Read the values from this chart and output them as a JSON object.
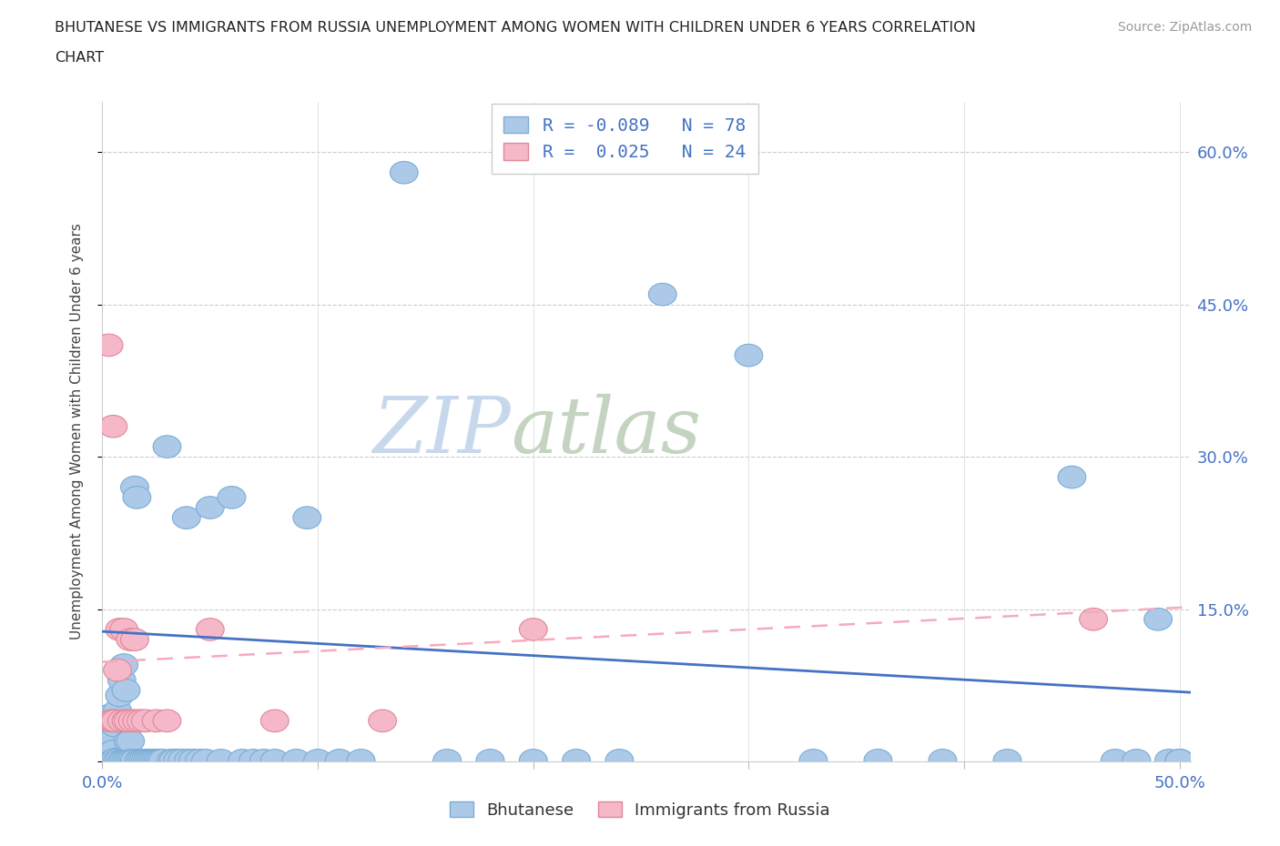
{
  "title_line1": "BHUTANESE VS IMMIGRANTS FROM RUSSIA UNEMPLOYMENT AMONG WOMEN WITH CHILDREN UNDER 6 YEARS CORRELATION",
  "title_line2": "CHART",
  "source": "Source: ZipAtlas.com",
  "ylabel": "Unemployment Among Women with Children Under 6 years",
  "watermark_top": "ZIP",
  "watermark_bot": "atlas",
  "xlim": [
    0.0,
    0.505
  ],
  "ylim": [
    0.0,
    0.65
  ],
  "xtick_positions": [
    0.0,
    0.1,
    0.2,
    0.3,
    0.4,
    0.5
  ],
  "xticklabels": [
    "0.0%",
    "",
    "",
    "",
    "",
    "50.0%"
  ],
  "ytick_positions": [
    0.0,
    0.15,
    0.3,
    0.45,
    0.6
  ],
  "yticklabels_right": [
    "",
    "15.0%",
    "30.0%",
    "45.0%",
    "60.0%"
  ],
  "bhutanese_color": "#adc9e8",
  "bhutanese_edge": "#7aadd6",
  "russia_color": "#f5b8c8",
  "russia_edge": "#e08898",
  "trendline_blue": "#4472c4",
  "trendline_pink": "#f5aabe",
  "legend_line1": "R = -0.089   N = 78",
  "legend_line2": "R =  0.025   N = 24",
  "bhutanese_trendline_x": [
    0.0,
    0.505
  ],
  "bhutanese_trendline_y": [
    0.128,
    0.068
  ],
  "russia_trendline_x": [
    0.0,
    0.505
  ],
  "russia_trendline_y": [
    0.098,
    0.152
  ],
  "bhutanese_x": [
    0.003,
    0.004,
    0.005,
    0.005,
    0.006,
    0.006,
    0.007,
    0.007,
    0.008,
    0.008,
    0.009,
    0.009,
    0.01,
    0.01,
    0.011,
    0.011,
    0.012,
    0.012,
    0.013,
    0.013,
    0.014,
    0.015,
    0.015,
    0.016,
    0.017,
    0.018,
    0.019,
    0.02,
    0.021,
    0.022,
    0.023,
    0.024,
    0.025,
    0.026,
    0.027,
    0.028,
    0.03,
    0.032,
    0.033,
    0.035,
    0.037,
    0.039,
    0.04,
    0.042,
    0.045,
    0.048,
    0.05,
    0.055,
    0.06,
    0.065,
    0.07,
    0.075,
    0.08,
    0.09,
    0.095,
    0.1,
    0.11,
    0.12,
    0.14,
    0.16,
    0.18,
    0.2,
    0.22,
    0.24,
    0.26,
    0.3,
    0.33,
    0.36,
    0.39,
    0.42,
    0.45,
    0.47,
    0.48,
    0.49,
    0.495,
    0.5,
    0.5,
    0.5
  ],
  "bhutanese_y": [
    0.045,
    0.02,
    0.01,
    0.001,
    0.035,
    0.002,
    0.05,
    0.001,
    0.065,
    0.002,
    0.08,
    0.001,
    0.095,
    0.001,
    0.07,
    0.001,
    0.02,
    0.001,
    0.02,
    0.001,
    0.001,
    0.27,
    0.001,
    0.26,
    0.001,
    0.001,
    0.001,
    0.001,
    0.001,
    0.001,
    0.001,
    0.001,
    0.001,
    0.001,
    0.001,
    0.001,
    0.31,
    0.001,
    0.001,
    0.001,
    0.001,
    0.24,
    0.001,
    0.001,
    0.001,
    0.001,
    0.25,
    0.001,
    0.26,
    0.001,
    0.001,
    0.001,
    0.001,
    0.001,
    0.24,
    0.001,
    0.001,
    0.001,
    0.58,
    0.001,
    0.001,
    0.001,
    0.001,
    0.001,
    0.46,
    0.4,
    0.001,
    0.001,
    0.001,
    0.001,
    0.28,
    0.001,
    0.001,
    0.14,
    0.001,
    0.001,
    0.001,
    0.001
  ],
  "russia_x": [
    0.003,
    0.004,
    0.005,
    0.005,
    0.006,
    0.007,
    0.008,
    0.009,
    0.01,
    0.011,
    0.012,
    0.013,
    0.014,
    0.015,
    0.016,
    0.018,
    0.02,
    0.025,
    0.03,
    0.05,
    0.08,
    0.13,
    0.2,
    0.46
  ],
  "russia_y": [
    0.41,
    0.04,
    0.33,
    0.04,
    0.04,
    0.09,
    0.13,
    0.04,
    0.13,
    0.04,
    0.04,
    0.12,
    0.04,
    0.12,
    0.04,
    0.04,
    0.04,
    0.04,
    0.04,
    0.13,
    0.04,
    0.04,
    0.13,
    0.14
  ]
}
